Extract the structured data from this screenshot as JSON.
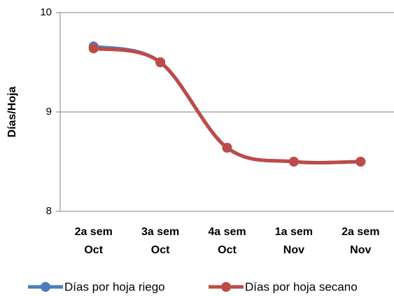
{
  "chart_data": {
    "type": "line",
    "y_label": "Días/Hoja",
    "categories": [
      "2a sem\nOct",
      "3a sem\nOct",
      "4a sem\nOct",
      "1a sem\nNov",
      "2a sem\nNov"
    ],
    "series": [
      {
        "name": "Días por hoja riego",
        "color": "#4a7ebb",
        "values": [
          9.66,
          9.5,
          8.64,
          8.5,
          8.5
        ]
      },
      {
        "name": "Días por hoja secano",
        "color": "#be4b48",
        "values": [
          9.64,
          9.5,
          8.64,
          8.5,
          8.5
        ]
      }
    ],
    "ylim": [
      8,
      10
    ],
    "yticks": [
      8,
      9,
      10
    ],
    "grid": true,
    "smooth": true,
    "legend": "bottom"
  }
}
